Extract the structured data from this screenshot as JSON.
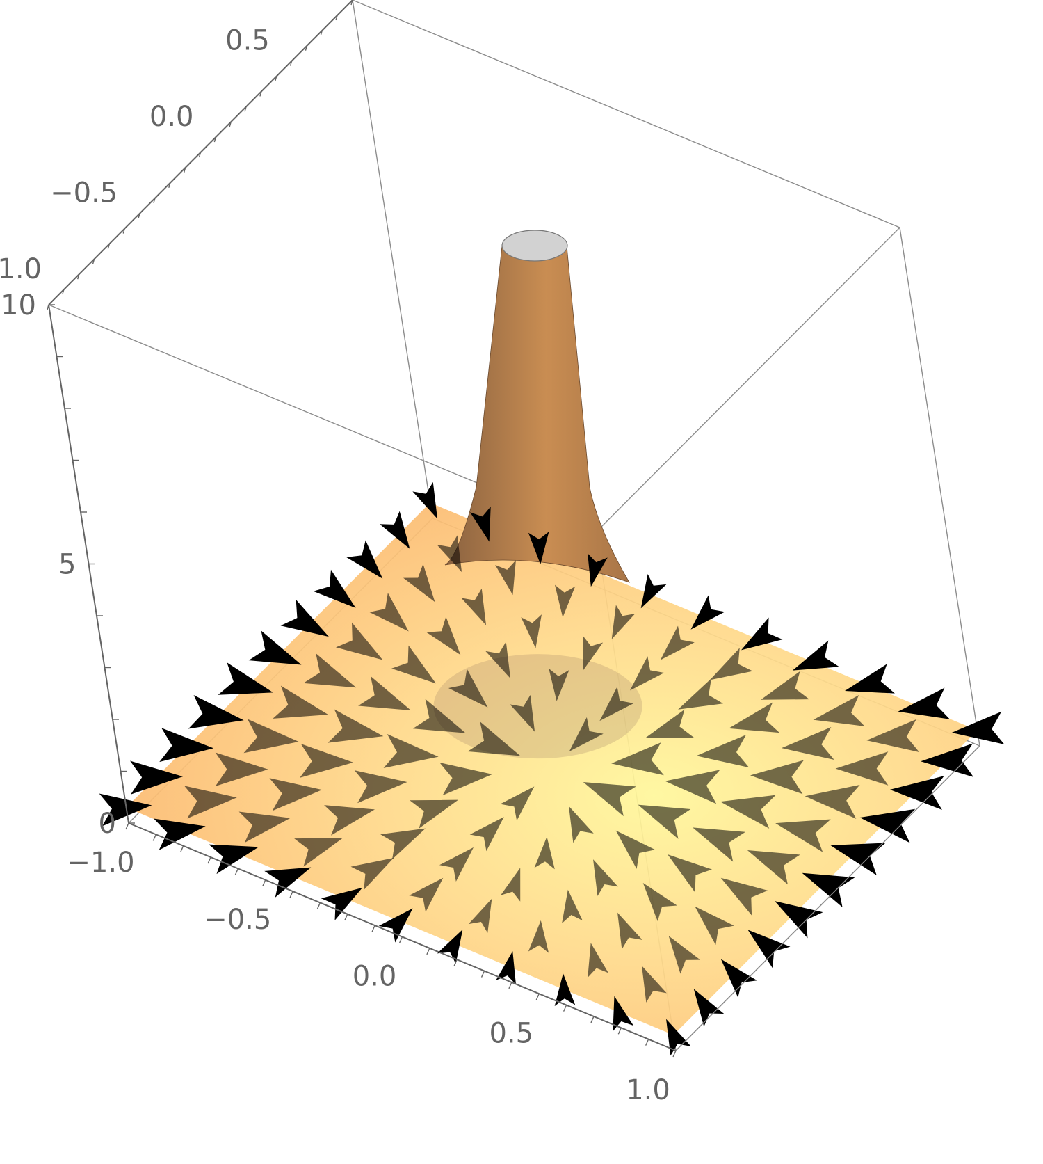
{
  "chart_data": {
    "type": "surface3d-with-vector-field",
    "description_visible": false,
    "axes": {
      "x": {
        "range": [
          -1,
          1
        ],
        "ticks": [
          "−1.0",
          "−0.5",
          "0.0",
          "0.5",
          "1.0"
        ]
      },
      "y": {
        "range": [
          -1,
          1
        ],
        "ticks": [
          "−1.0",
          "−0.5",
          "0.0",
          "0.5",
          "1.0"
        ]
      },
      "z": {
        "range": [
          0,
          10
        ],
        "ticks": [
          "0",
          "5",
          "10"
        ]
      }
    },
    "surface": {
      "peak_position": [
        0,
        0
      ],
      "peak_height_clipped": 10,
      "base_height": 0.3,
      "color": "#f0a050",
      "cap_color": "#d2d2d2"
    },
    "vector_field": {
      "grid": [
        -1.0,
        -0.8,
        -0.6,
        -0.4,
        -0.2,
        0.0,
        0.2,
        0.4,
        0.6,
        0.8,
        1.0
      ],
      "direction": "radial-inward",
      "color": "#000000"
    },
    "grid": false,
    "box": true
  }
}
